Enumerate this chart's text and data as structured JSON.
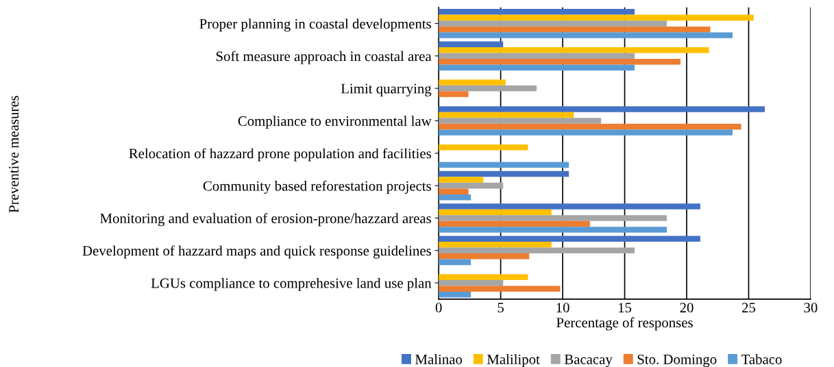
{
  "chart_data": {
    "type": "bar",
    "orientation": "horizontal",
    "xlabel": "Percentage of responses",
    "ylabel": "Preventive measures",
    "categories": [
      "Proper planning in coastal developments",
      "Soft measure approach in coastal area",
      "Limit quarrying",
      "Compliance to environmental law",
      "Relocation of hazzard prone population and facilities",
      "Community based reforestation projects",
      "Monitoring and evaluation of erosion-prone/hazzard areas",
      "Development of hazzard maps and quick response guidelines",
      "LGUs compliance to comprehesive land use plan"
    ],
    "series": [
      {
        "name": "Malinao",
        "color": "#4472c4",
        "values": [
          15.8,
          5.2,
          null,
          26.3,
          null,
          10.5,
          21.1,
          21.1,
          null
        ]
      },
      {
        "name": "Malilipot",
        "color": "#ffc000",
        "values": [
          25.4,
          21.8,
          5.4,
          10.9,
          7.2,
          3.6,
          9.1,
          9.1,
          7.2
        ]
      },
      {
        "name": "Bacacay",
        "color": "#a5a5a5",
        "values": [
          18.4,
          15.8,
          7.9,
          13.1,
          null,
          5.2,
          18.4,
          15.8,
          5.2
        ]
      },
      {
        "name": "Sto. Domingo",
        "color": "#ed7d31",
        "values": [
          21.9,
          19.5,
          2.4,
          24.4,
          null,
          2.4,
          12.2,
          7.3,
          9.8
        ]
      },
      {
        "name": "Tabaco",
        "color": "#5b9bd5",
        "values": [
          23.7,
          15.8,
          null,
          23.7,
          10.5,
          2.6,
          18.4,
          2.6,
          2.6
        ]
      }
    ],
    "xlim": [
      0,
      30
    ],
    "xticks": [
      0,
      5,
      10,
      15,
      20,
      25,
      30
    ],
    "grid": "x",
    "legend": "bottom"
  }
}
